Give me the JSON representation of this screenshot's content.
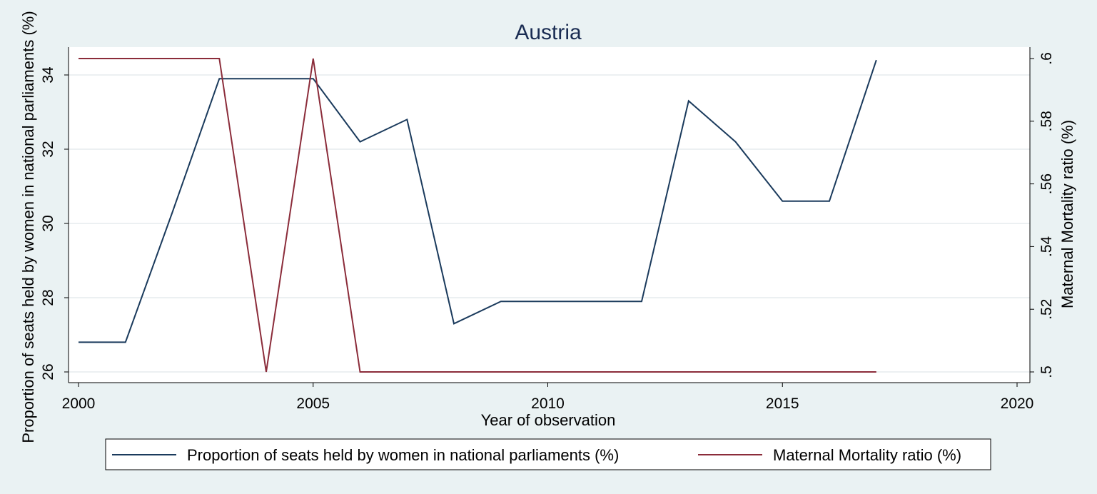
{
  "chart_data": {
    "type": "line",
    "title": "Austria",
    "xlabel": "Year of observation",
    "ylabel_left": "Proportion of seats held by women in national parliaments (%)",
    "ylabel_right": "Maternal Mortality ratio (%)",
    "xlim": [
      2000,
      2020
    ],
    "ylim_left": [
      25.8,
      34.7
    ],
    "ylim_right": [
      0.499,
      0.6005
    ],
    "x_ticks": [
      2000,
      2005,
      2010,
      2015,
      2020
    ],
    "x_tick_labels": [
      "2000",
      "2005",
      "2010",
      "2015",
      "2020"
    ],
    "y_left_ticks": [
      26,
      28,
      30,
      32,
      34
    ],
    "y_left_tick_labels": [
      "26",
      "28",
      "30",
      "32",
      "34"
    ],
    "y_right_ticks": [
      0.5,
      0.52,
      0.54,
      0.56,
      0.58,
      0.6
    ],
    "y_right_tick_labels": [
      ".5",
      ".52",
      ".54",
      ".56",
      ".58",
      ".6"
    ],
    "grid": true,
    "legend_position": "bottom",
    "series": [
      {
        "name": "Proportion of seats held by women in national parliaments (%)",
        "axis": "left",
        "color": "#1a3a5c",
        "x": [
          2000,
          2001,
          2002,
          2003,
          2004,
          2005,
          2006,
          2007,
          2008,
          2009,
          2010,
          2011,
          2012,
          2013,
          2014,
          2015,
          2016,
          2017
        ],
        "y": [
          26.8,
          26.8,
          30.3,
          33.9,
          33.9,
          33.9,
          32.2,
          32.8,
          27.3,
          27.9,
          27.9,
          27.9,
          27.9,
          33.3,
          32.2,
          30.6,
          30.6,
          34.4
        ]
      },
      {
        "name": "Maternal Mortality ratio (%)",
        "axis": "right",
        "color": "#8b2c3a",
        "x": [
          2000,
          2001,
          2002,
          2003,
          2004,
          2005,
          2006,
          2007,
          2008,
          2009,
          2010,
          2011,
          2012,
          2013,
          2014,
          2015,
          2016,
          2017
        ],
        "y": [
          0.6,
          0.6,
          0.6,
          0.6,
          0.5,
          0.6,
          0.5,
          0.5,
          0.5,
          0.5,
          0.5,
          0.5,
          0.5,
          0.5,
          0.5,
          0.5,
          0.5,
          0.5
        ]
      }
    ]
  }
}
